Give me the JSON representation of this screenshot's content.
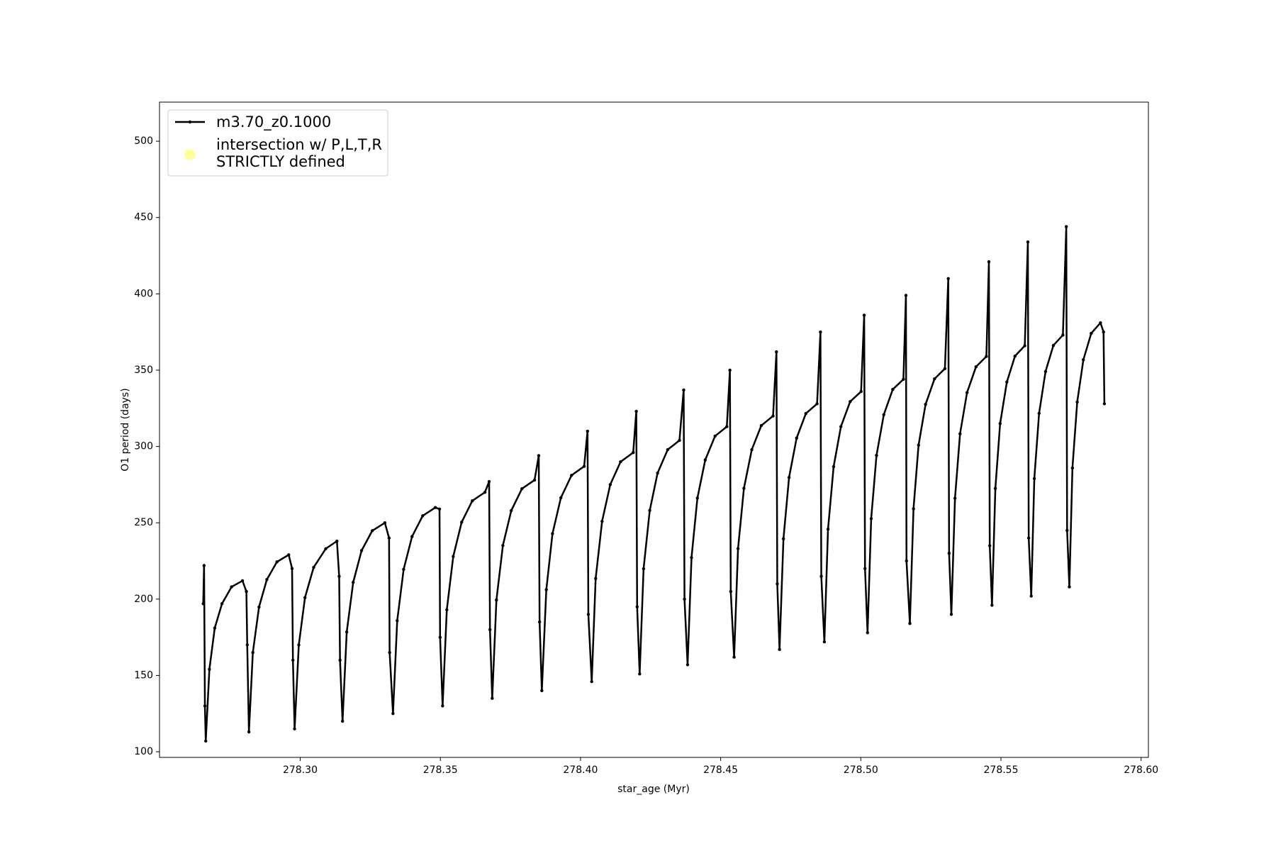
{
  "chart_data": {
    "type": "line",
    "xlabel": "star_age (Myr)",
    "ylabel": "O1 period (days)",
    "legend": "upper left",
    "xlim": [
      278.2498,
      278.6026
    ],
    "ylim": [
      96.3,
      525.6
    ],
    "xticks": [
      {
        "value": 278.3,
        "label": "278.30"
      },
      {
        "value": 278.35,
        "label": "278.35"
      },
      {
        "value": 278.4,
        "label": "278.40"
      },
      {
        "value": 278.45,
        "label": "278.45"
      },
      {
        "value": 278.5,
        "label": "278.50"
      },
      {
        "value": 278.55,
        "label": "278.55"
      },
      {
        "value": 278.6,
        "label": "278.60"
      }
    ],
    "yticks": [
      100,
      150,
      200,
      250,
      300,
      350,
      400,
      450,
      500
    ],
    "x": [
      278.2654,
      278.2657,
      278.266,
      278.2663,
      278.2676,
      278.2695,
      278.2721,
      278.2755,
      278.2794,
      278.2808,
      278.2811,
      278.2817,
      278.2831,
      278.2853,
      278.2881,
      278.2917,
      278.2959,
      278.2971,
      278.2974,
      278.298,
      278.2995,
      278.3017,
      278.3048,
      278.3091,
      278.3131,
      278.3139,
      278.3142,
      278.3151,
      278.3166,
      278.3189,
      278.3219,
      278.3257,
      278.3302,
      278.3317,
      278.3319,
      278.3331,
      278.3346,
      278.3369,
      278.3399,
      278.3437,
      278.3482,
      278.3497,
      278.3499,
      278.3508,
      278.3523,
      278.3546,
      278.3576,
      278.3614,
      278.3659,
      278.3674,
      278.3677,
      278.3685,
      278.37,
      278.3723,
      278.3753,
      278.3791,
      278.3836,
      278.3851,
      278.3854,
      278.3862,
      278.3878,
      278.39,
      278.393,
      278.3968,
      278.4013,
      278.4025,
      278.4028,
      278.404,
      278.4054,
      278.4077,
      278.4106,
      278.4143,
      278.4188,
      278.4199,
      278.4202,
      278.4211,
      278.4225,
      278.4247,
      278.4275,
      278.4311,
      278.4353,
      278.4368,
      278.4371,
      278.4382,
      278.4396,
      278.4417,
      278.4445,
      278.448,
      278.4522,
      278.4533,
      278.4536,
      278.4548,
      278.4562,
      278.4583,
      278.4611,
      278.4645,
      278.4687,
      278.4699,
      278.4702,
      278.471,
      278.4724,
      278.4744,
      278.4771,
      278.4804,
      278.4844,
      278.4856,
      278.4859,
      278.487,
      278.4883,
      278.4903,
      278.4929,
      278.4962,
      278.5001,
      278.5012,
      278.5015,
      278.5024,
      278.5037,
      278.5056,
      278.5082,
      278.5114,
      278.5152,
      278.5161,
      278.5163,
      278.5175,
      278.5188,
      278.5206,
      278.5231,
      278.5263,
      278.53,
      278.5312,
      278.5315,
      278.5323,
      278.5336,
      278.5354,
      278.5379,
      278.5411,
      278.5448,
      278.5457,
      278.546,
      278.5468,
      278.548,
      278.5497,
      278.5521,
      278.555,
      278.5585,
      278.5596,
      278.5599,
      278.5608,
      278.5619,
      278.5636,
      278.5659,
      278.5687,
      278.5721,
      278.5733,
      278.5736,
      278.5744,
      278.5755,
      278.5772,
      278.5794,
      278.5822,
      278.5855,
      278.5866,
      278.5869
    ],
    "series": [
      {
        "name": "m3.70_z0.1000",
        "color": "#000000",
        "values": [
          197,
          222,
          130,
          107,
          154,
          181,
          197,
          208,
          212,
          205,
          170,
          113,
          165,
          194.8,
          212.8,
          224.4,
          229,
          220,
          160,
          115,
          170,
          201,
          220.8,
          233,
          238,
          215,
          160,
          120,
          178.5,
          211,
          231.8,
          244.8,
          250,
          240,
          165,
          125,
          185.8,
          219.5,
          241,
          254.6,
          260,
          259,
          175,
          130,
          193,
          228,
          250.4,
          264.4,
          270,
          277,
          180,
          135,
          199.4,
          235.1,
          258,
          272.3,
          278,
          294,
          185,
          140,
          206.2,
          242.9,
          266.4,
          281.1,
          287,
          310,
          190,
          146,
          213.5,
          251,
          275,
          290,
          296,
          323,
          195,
          151,
          219.9,
          258.1,
          282.6,
          297.9,
          304,
          337,
          200,
          157,
          227.2,
          266.2,
          291.2,
          306.8,
          313,
          350,
          205,
          162,
          233.1,
          272.6,
          297.9,
          313.7,
          320,
          362,
          210,
          167,
          239.5,
          279.7,
          305.5,
          321.6,
          328,
          375,
          215,
          172,
          245.8,
          286.8,
          313,
          329.4,
          336,
          386,
          220,
          178,
          252.7,
          294.2,
          320.8,
          337.4,
          344,
          399,
          225,
          184,
          259.2,
          300.9,
          327.6,
          344.3,
          351,
          410,
          230,
          190,
          266.1,
          308.3,
          335.3,
          352.2,
          359,
          421,
          235,
          196,
          272.5,
          315,
          342.2,
          359.2,
          366,
          434,
          240,
          202,
          279,
          321.7,
          349.1,
          366.2,
          373,
          444,
          245,
          208,
          285.9,
          329.1,
          356.8,
          374.1,
          381,
          375,
          328
        ]
      },
      {
        "name": "intersection w/ P,L,T,R\nSTRICTLY defined",
        "color": "#ffffa0"
      }
    ]
  }
}
